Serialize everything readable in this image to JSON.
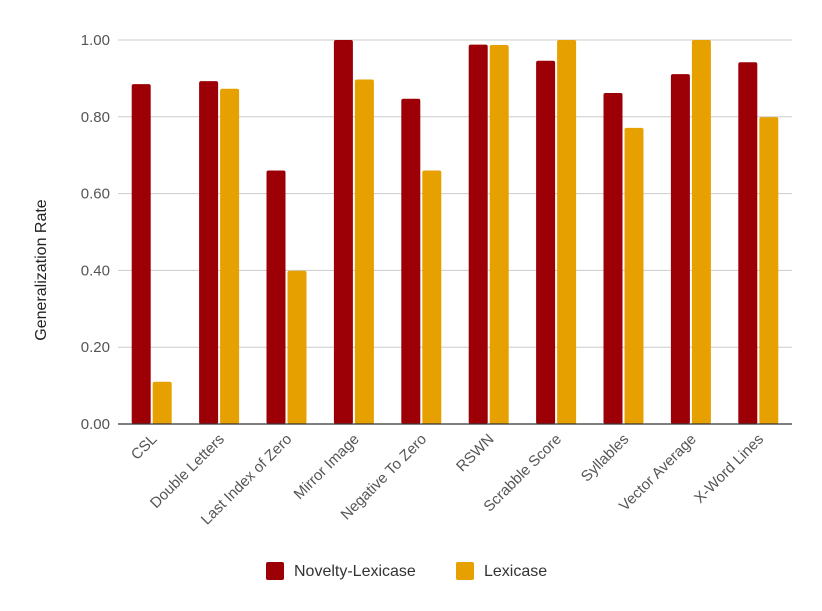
{
  "chart_data": {
    "type": "bar",
    "title": "",
    "xlabel": "",
    "ylabel": "Generalization Rate",
    "ylim": [
      0,
      1
    ],
    "yticks": [
      "0.00",
      "0.20",
      "0.40",
      "0.60",
      "0.80",
      "1.00"
    ],
    "ytick_values": [
      0,
      0.2,
      0.4,
      0.6,
      0.8,
      1.0
    ],
    "grid": true,
    "legend_position": "bottom",
    "categories": [
      "CSL",
      "Double Letters",
      "Last Index of Zero",
      "Mirror Image",
      "Negative To Zero",
      "RSWN",
      "Scrabble Score",
      "Syllables",
      "Vector Average",
      "X-Word Lines"
    ],
    "series": [
      {
        "name": "Novelty-Lexicase",
        "color": "#9c0006",
        "values": [
          0.885,
          0.893,
          0.66,
          1.0,
          0.847,
          0.988,
          0.946,
          0.862,
          0.911,
          0.942
        ]
      },
      {
        "name": "Lexicase",
        "color": "#e6a100",
        "values": [
          0.11,
          0.873,
          0.399,
          0.897,
          0.66,
          0.987,
          1.0,
          0.771,
          1.0,
          0.799
        ]
      }
    ]
  }
}
